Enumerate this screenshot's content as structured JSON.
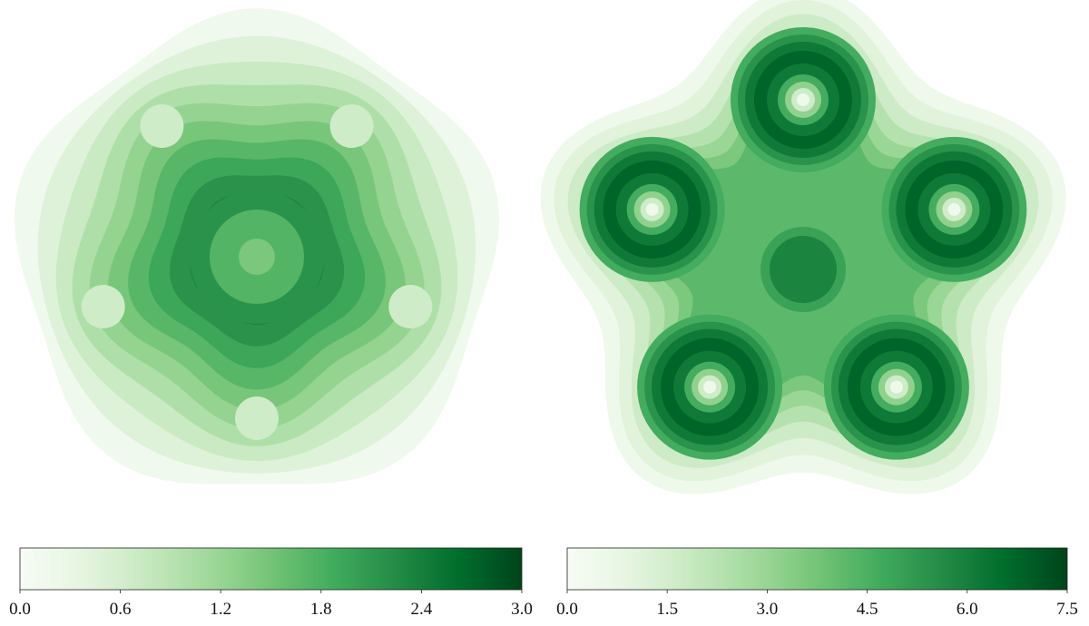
{
  "chart_data": [
    {
      "type": "heatmap",
      "colormap": "Greens",
      "colorbar": {
        "orientation": "horizontal",
        "placement": "bottom",
        "vmin": 0.0,
        "vmax": 3.0,
        "ticks": [
          "0.0",
          "0.6",
          "1.2",
          "1.8",
          "2.4",
          "3.0"
        ]
      },
      "pattern": "five-fold pentagonal contour field with dark central region, inner ring and a light center; five light notches at the rim",
      "contour_levels": 11
    },
    {
      "type": "heatmap",
      "colormap": "Greens",
      "colorbar": {
        "orientation": "horizontal",
        "placement": "bottom",
        "vmin": 0.0,
        "vmax": 7.5,
        "ticks": [
          "0.0",
          "1.5",
          "3.0",
          "4.5",
          "6.0",
          "7.5"
        ]
      },
      "pattern": "five-lobed contour field with five ring-shaped maxima around light centers and a dark central spot",
      "contour_levels": 13
    }
  ]
}
